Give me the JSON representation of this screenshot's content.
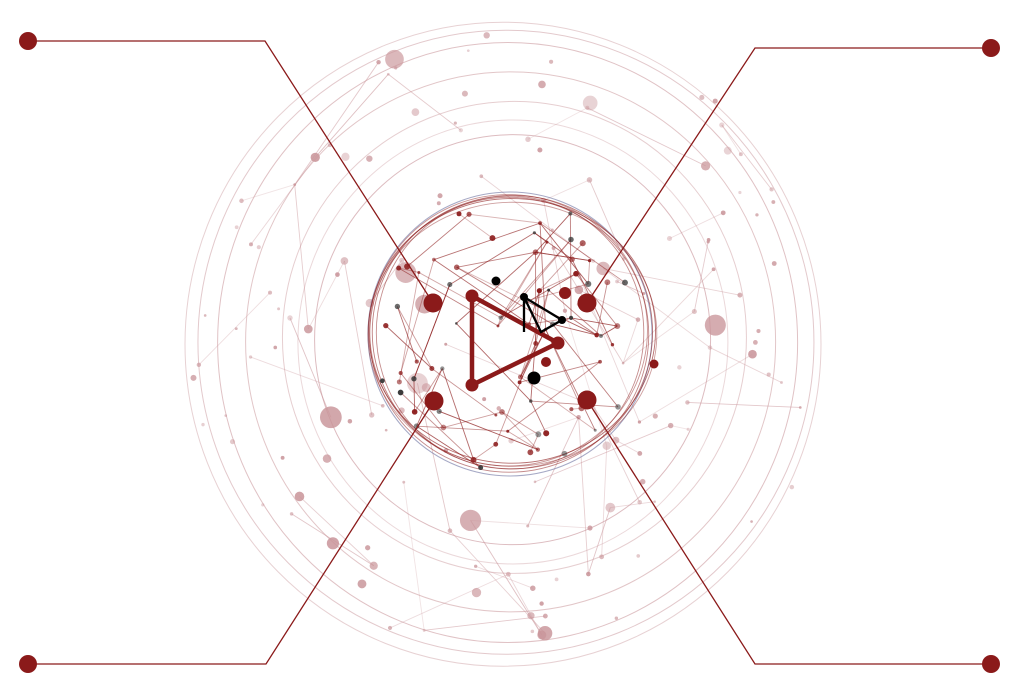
{
  "diagram": {
    "accent_color": "#8b1a1a",
    "dark_color": "#000000",
    "network_color": "#c9959a",
    "inner_ring_color": "#6a6f9e",
    "callouts": [
      {
        "id": "top-left-callout",
        "side": "left"
      },
      {
        "id": "top-right-callout",
        "side": "right"
      },
      {
        "id": "bottom-left-callout",
        "side": "left"
      },
      {
        "id": "bottom-right-callout",
        "side": "right"
      }
    ],
    "center_icon": "play-triangle-icon"
  }
}
